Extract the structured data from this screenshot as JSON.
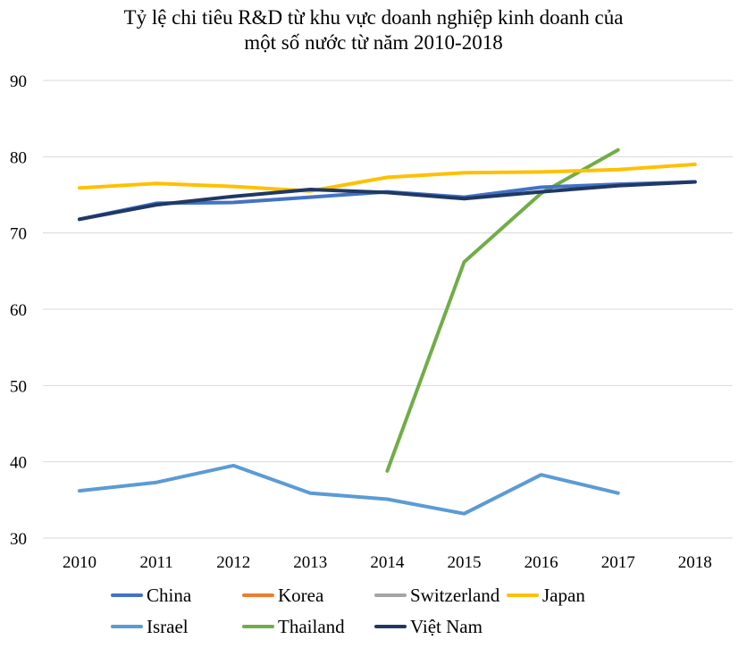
{
  "chart_data": {
    "type": "line",
    "title_line1": "Tỷ lệ chi tiêu R&D từ khu vực doanh nghiệp kinh doanh của",
    "title_line2": "một số nước từ năm 2010-2018",
    "categories": [
      "2010",
      "2011",
      "2012",
      "2013",
      "2014",
      "2015",
      "2016",
      "2017",
      "2018"
    ],
    "ylim": [
      30,
      90
    ],
    "yticks": [
      30,
      40,
      50,
      60,
      70,
      80,
      90
    ],
    "grid": true,
    "legend_position": "bottom",
    "series": [
      {
        "name": "China",
        "color": "#4472C4",
        "values": [
          71.8,
          73.9,
          74.0,
          74.7,
          75.4,
          74.7,
          76.0,
          76.4,
          76.7
        ]
      },
      {
        "name": "Korea",
        "color": "#ED7D31",
        "values": [
          null,
          null,
          null,
          null,
          null,
          null,
          null,
          null,
          null
        ]
      },
      {
        "name": "Switzerland",
        "color": "#A5A5A5",
        "values": [
          null,
          null,
          null,
          null,
          null,
          null,
          null,
          null,
          null
        ]
      },
      {
        "name": "Japan",
        "color": "#FFC000",
        "values": [
          75.9,
          76.5,
          76.1,
          75.5,
          77.3,
          77.9,
          78.0,
          78.3,
          79.0
        ]
      },
      {
        "name": "Israel",
        "color": "#5B9BD5",
        "values": [
          36.2,
          37.3,
          39.5,
          35.9,
          35.1,
          33.2,
          38.3,
          35.9,
          null
        ]
      },
      {
        "name": "Thailand",
        "color": "#70AD47",
        "values": [
          null,
          null,
          null,
          null,
          38.8,
          66.2,
          75.2,
          80.9,
          null
        ]
      },
      {
        "name": "Việt Nam",
        "color": "#203864",
        "values": [
          71.8,
          73.7,
          74.8,
          75.7,
          75.3,
          74.5,
          75.4,
          76.2,
          76.7
        ]
      }
    ]
  }
}
